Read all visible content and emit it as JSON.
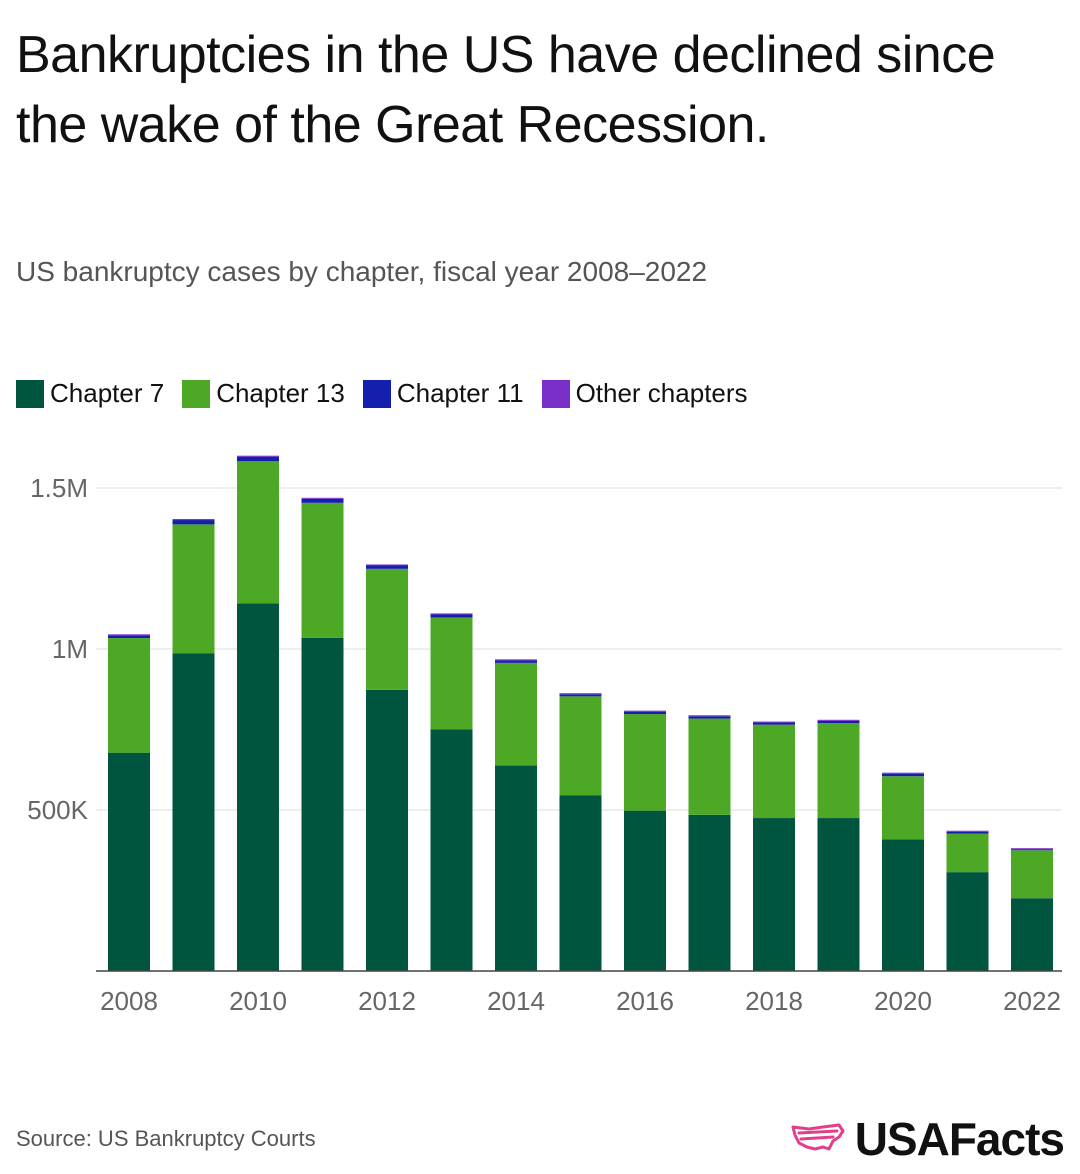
{
  "title": "Bankruptcies in the US have declined since the wake of the Great Recession.",
  "subtitle": "US bankruptcy cases by chapter, fiscal year 2008–2022",
  "source": "Source: US Bankruptcy Courts",
  "brand": {
    "name": "USAFacts",
    "icon": "usa-map-logo-icon",
    "color": "#e0408a"
  },
  "chart_data": {
    "type": "bar",
    "stacked": true,
    "categories": [
      "2008",
      "2009",
      "2010",
      "2011",
      "2012",
      "2013",
      "2014",
      "2015",
      "2016",
      "2017",
      "2018",
      "2019",
      "2020",
      "2021",
      "2022"
    ],
    "series": [
      {
        "name": "Chapter 7",
        "color": "#00553f",
        "values": [
          678000,
          986000,
          1142000,
          1035000,
          873000,
          751000,
          638000,
          546000,
          498000,
          485000,
          475000,
          475000,
          409000,
          307000,
          226000
        ]
      },
      {
        "name": "Chapter 13",
        "color": "#4da825",
        "values": [
          356000,
          401000,
          441000,
          419000,
          376000,
          347000,
          319000,
          307000,
          300000,
          299000,
          290000,
          295000,
          196000,
          120000,
          149000
        ]
      },
      {
        "name": "Chapter 11",
        "color": "#1420ad",
        "values": [
          8500,
          13500,
          14200,
          12400,
          10400,
          9400,
          7700,
          6600,
          7400,
          7100,
          6500,
          7000,
          7800,
          5500,
          3300
        ]
      },
      {
        "name": "Other chapters",
        "color": "#7b2fc9",
        "values": [
          800,
          900,
          900,
          900,
          900,
          900,
          800,
          800,
          800,
          700,
          700,
          700,
          700,
          600,
          600
        ]
      }
    ],
    "y_ticks": [
      500000,
      1000000,
      1500000
    ],
    "y_tick_labels": [
      "500K",
      "1M",
      "1.5M"
    ],
    "x_tick_labels": [
      "2008",
      "2010",
      "2012",
      "2014",
      "2016",
      "2018",
      "2020",
      "2022"
    ],
    "ylim": [
      0,
      1650000
    ],
    "grid": true,
    "legend_position": "top-left"
  }
}
